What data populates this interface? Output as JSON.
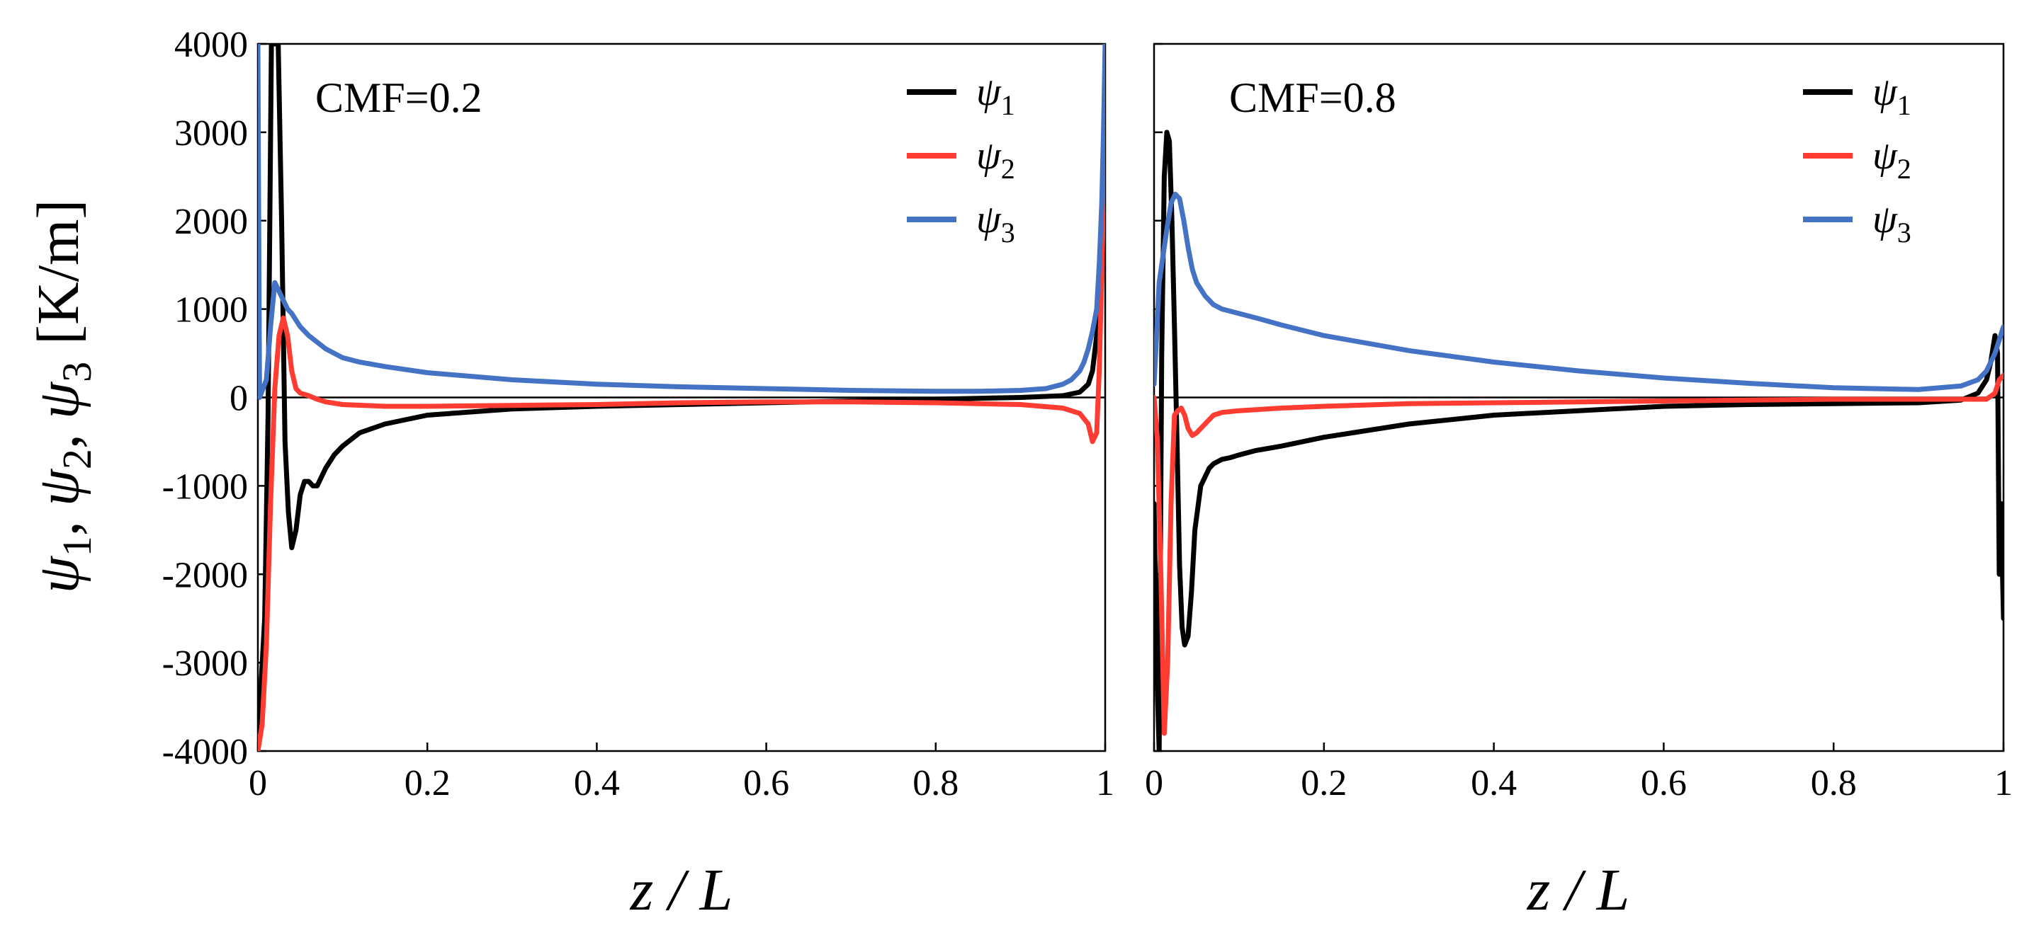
{
  "figure": {
    "ylabel": "ψ1 , ψ2 , ψ3 [K/m]",
    "ylabel_parts": {
      "sym": "ψ",
      "sub1": "1",
      "sub2": "2",
      "sub3": "3",
      "unit": "[K/m]"
    }
  },
  "chart_data": [
    {
      "type": "line",
      "annotation": "CMF=0.2",
      "xlabel": "z / L",
      "ylabel": "ψ1 , ψ2 , ψ3 [K/m]",
      "xlim": [
        0,
        1
      ],
      "ylim": [
        -4000,
        4000
      ],
      "xticks": [
        0,
        0.2,
        0.4,
        0.6,
        0.8,
        1
      ],
      "xtick_labels": [
        "0",
        "0.2",
        "0.4",
        "0.6",
        "0.8",
        "1"
      ],
      "yticks": [
        -4000,
        -3000,
        -2000,
        -1000,
        0,
        1000,
        2000,
        3000,
        4000
      ],
      "ytick_labels": [
        "-4000",
        "-3000",
        "-2000",
        "-1000",
        "0",
        "1000",
        "2000",
        "3000",
        "4000"
      ],
      "zero_line": true,
      "legend_position": "top-right",
      "series": [
        {
          "name": "ψ1",
          "sym": "ψ",
          "sub": "1",
          "color": "#000000",
          "x": [
            0,
            0.004,
            0.008,
            0.012,
            0.016,
            0.02,
            0.024,
            0.028,
            0.032,
            0.036,
            0.04,
            0.045,
            0.05,
            0.055,
            0.06,
            0.065,
            0.07,
            0.075,
            0.08,
            0.09,
            0.1,
            0.12,
            0.15,
            0.2,
            0.3,
            0.4,
            0.5,
            0.6,
            0.7,
            0.8,
            0.9,
            0.95,
            0.97,
            0.98,
            0.985,
            0.99,
            0.993
          ],
          "y": [
            -4000,
            -3200,
            -2500,
            -200,
            4000,
            4000,
            4000,
            2000,
            -500,
            -1300,
            -1700,
            -1500,
            -1100,
            -950,
            -950,
            -1000,
            -1000,
            -900,
            -800,
            -650,
            -550,
            -400,
            -300,
            -200,
            -130,
            -100,
            -80,
            -60,
            -40,
            -20,
            0,
            20,
            60,
            150,
            300,
            700,
            1500
          ]
        },
        {
          "name": "ψ2",
          "sym": "ψ",
          "sub": "2",
          "color": "#ff3c32",
          "x": [
            0,
            0.005,
            0.01,
            0.015,
            0.02,
            0.025,
            0.03,
            0.035,
            0.04,
            0.045,
            0.05,
            0.06,
            0.07,
            0.08,
            0.1,
            0.15,
            0.2,
            0.3,
            0.4,
            0.5,
            0.6,
            0.7,
            0.8,
            0.9,
            0.95,
            0.97,
            0.98,
            0.985,
            0.99,
            0.993,
            0.997,
            1
          ],
          "y": [
            -4000,
            -3700,
            -2800,
            -1200,
            100,
            700,
            900,
            700,
            300,
            100,
            50,
            20,
            -20,
            -50,
            -80,
            -100,
            -100,
            -90,
            -80,
            -60,
            -50,
            -50,
            -60,
            -80,
            -120,
            -180,
            -300,
            -500,
            -400,
            300,
            1800,
            4000
          ]
        },
        {
          "name": "ψ3",
          "sym": "ψ",
          "sub": "3",
          "color": "#4472c4",
          "x": [
            0,
            0.002,
            0.004,
            0.006,
            0.008,
            0.01,
            0.015,
            0.02,
            0.025,
            0.03,
            0.035,
            0.04,
            0.05,
            0.06,
            0.08,
            0.1,
            0.12,
            0.15,
            0.2,
            0.3,
            0.4,
            0.5,
            0.6,
            0.7,
            0.8,
            0.85,
            0.9,
            0.93,
            0.95,
            0.96,
            0.97,
            0.975,
            0.98,
            0.985,
            0.99,
            0.993,
            0.996,
            0.998,
            1
          ],
          "y": [
            4000,
            0,
            50,
            100,
            150,
            200,
            800,
            1300,
            1200,
            1100,
            1000,
            950,
            800,
            700,
            550,
            450,
            400,
            350,
            280,
            200,
            150,
            120,
            100,
            80,
            70,
            70,
            80,
            100,
            150,
            200,
            300,
            400,
            550,
            750,
            1000,
            1500,
            2200,
            3000,
            4000
          ]
        }
      ]
    },
    {
      "type": "line",
      "annotation": "CMF=0.8",
      "xlabel": "z / L",
      "xlim": [
        0,
        1
      ],
      "ylim": [
        -4000,
        4000
      ],
      "xticks": [
        0,
        0.2,
        0.4,
        0.6,
        0.8,
        1
      ],
      "xtick_labels": [
        "0",
        "0.2",
        "0.4",
        "0.6",
        "0.8",
        "1"
      ],
      "yticks": [
        -4000,
        -3000,
        -2000,
        -1000,
        0,
        1000,
        2000,
        3000,
        4000
      ],
      "ytick_labels": [],
      "zero_line": true,
      "legend_position": "top-right",
      "series": [
        {
          "name": "ψ1",
          "sym": "ψ",
          "sub": "1",
          "color": "#000000",
          "x": [
            0,
            0.003,
            0.006,
            0.009,
            0.012,
            0.015,
            0.018,
            0.021,
            0.024,
            0.027,
            0.03,
            0.033,
            0.036,
            0.04,
            0.044,
            0.048,
            0.055,
            0.06,
            0.065,
            0.07,
            0.08,
            0.09,
            0.1,
            0.12,
            0.15,
            0.2,
            0.3,
            0.4,
            0.5,
            0.6,
            0.7,
            0.8,
            0.9,
            0.95,
            0.97,
            0.98,
            0.985,
            0.99,
            0.993,
            0.995,
            0.997,
            1
          ],
          "y": [
            -1200,
            -3000,
            -4000,
            500,
            2500,
            3000,
            2900,
            2000,
            800,
            -500,
            -1900,
            -2600,
            -2800,
            -2700,
            -2200,
            -1500,
            -1000,
            -900,
            -800,
            -750,
            -700,
            -680,
            -650,
            -600,
            -550,
            -450,
            -300,
            -200,
            -150,
            -100,
            -80,
            -70,
            -60,
            -30,
            50,
            200,
            400,
            700,
            500,
            -2000,
            -1200,
            -2500
          ]
        },
        {
          "name": "ψ2",
          "sym": "ψ",
          "sub": "2",
          "color": "#ff3c32",
          "x": [
            0,
            0.004,
            0.008,
            0.012,
            0.016,
            0.02,
            0.024,
            0.028,
            0.032,
            0.036,
            0.04,
            0.045,
            0.05,
            0.06,
            0.07,
            0.08,
            0.1,
            0.15,
            0.2,
            0.3,
            0.4,
            0.5,
            0.6,
            0.7,
            0.8,
            0.9,
            0.95,
            0.98,
            0.99,
            0.995,
            1
          ],
          "y": [
            0,
            -500,
            -2000,
            -3800,
            -3000,
            -1200,
            -200,
            -150,
            -120,
            -200,
            -350,
            -430,
            -400,
            -300,
            -200,
            -170,
            -150,
            -120,
            -100,
            -70,
            -60,
            -50,
            -40,
            -30,
            -20,
            -20,
            -20,
            -20,
            50,
            200,
            250
          ]
        },
        {
          "name": "ψ3",
          "sym": "ψ",
          "sub": "3",
          "color": "#4472c4",
          "x": [
            0,
            0.003,
            0.006,
            0.009,
            0.012,
            0.015,
            0.02,
            0.025,
            0.03,
            0.035,
            0.04,
            0.045,
            0.05,
            0.06,
            0.07,
            0.08,
            0.1,
            0.12,
            0.15,
            0.2,
            0.3,
            0.4,
            0.5,
            0.6,
            0.7,
            0.8,
            0.9,
            0.95,
            0.97,
            0.98,
            0.99,
            0.995,
            1
          ],
          "y": [
            150,
            700,
            1300,
            1500,
            1700,
            1900,
            2200,
            2300,
            2250,
            2000,
            1700,
            1450,
            1300,
            1150,
            1050,
            1000,
            950,
            900,
            820,
            700,
            530,
            400,
            300,
            220,
            160,
            110,
            90,
            130,
            200,
            300,
            500,
            650,
            800
          ]
        }
      ]
    }
  ]
}
